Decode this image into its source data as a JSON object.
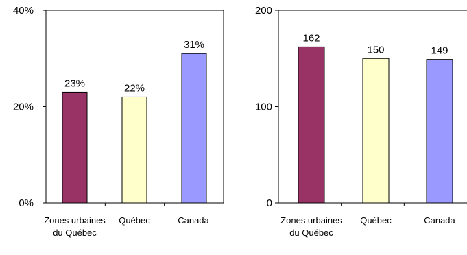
{
  "chart_data": [
    {
      "type": "bar",
      "categories": [
        "Zones urbaines du Québec",
        "Québec",
        "Canada"
      ],
      "values": [
        23,
        22,
        31
      ],
      "data_labels": [
        "23%",
        "22%",
        "31%"
      ],
      "yticks": [
        0,
        20,
        40
      ],
      "ytick_labels": [
        "0%",
        "20%",
        "40%"
      ],
      "ylim": [
        0,
        40
      ],
      "colors": [
        "#993366",
        "#ffffcc",
        "#9999ff"
      ],
      "grid": false,
      "legend": "none"
    },
    {
      "type": "bar",
      "categories": [
        "Zones urbaines du Québec",
        "Québec",
        "Canada"
      ],
      "values": [
        162,
        150,
        149
      ],
      "data_labels": [
        "162",
        "150",
        "149"
      ],
      "yticks": [
        0,
        100,
        200
      ],
      "ytick_labels": [
        "0",
        "100",
        "200"
      ],
      "ylim": [
        0,
        200
      ],
      "colors": [
        "#993366",
        "#ffffcc",
        "#9999ff"
      ],
      "grid": false,
      "legend": "none"
    }
  ]
}
